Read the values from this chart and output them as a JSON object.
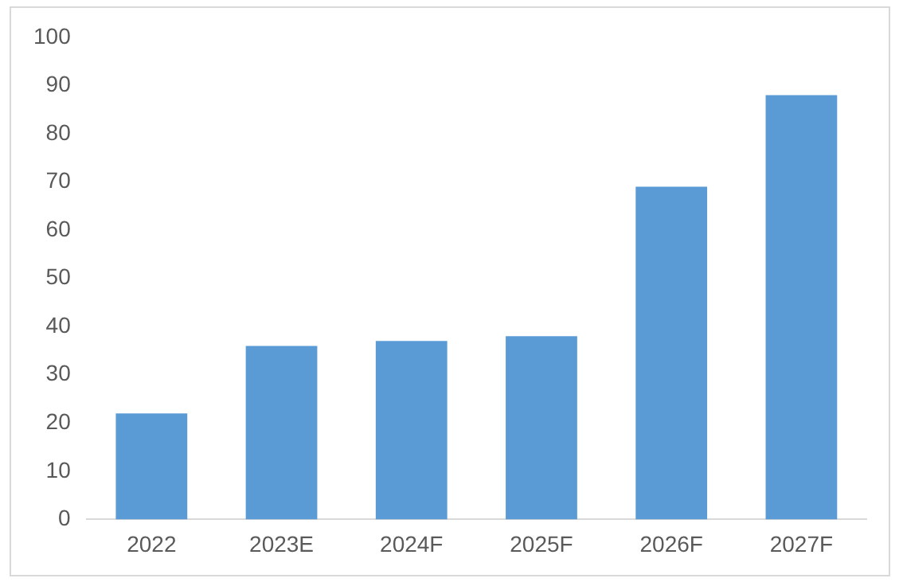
{
  "chart_data": {
    "type": "bar",
    "categories": [
      "2022",
      "2023E",
      "2024F",
      "2025F",
      "2026F",
      "2027F"
    ],
    "values": [
      22,
      36,
      37,
      38,
      69,
      88
    ],
    "color": "#5b9bd5",
    "ylim": [
      0,
      100
    ],
    "yticks": [
      0,
      10,
      20,
      30,
      40,
      50,
      60,
      70,
      80,
      90,
      100
    ],
    "grid": false,
    "legend": false
  }
}
